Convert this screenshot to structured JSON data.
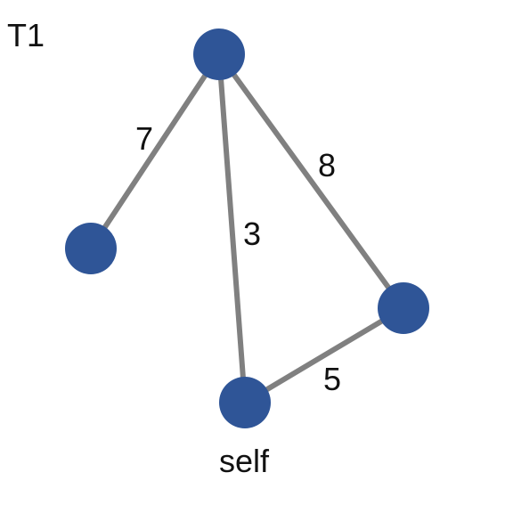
{
  "title": "T1",
  "colors": {
    "node": "#2f5597",
    "edge": "#808080",
    "text": "#111111"
  },
  "nodes": [
    {
      "id": "top",
      "label": ""
    },
    {
      "id": "left",
      "label": ""
    },
    {
      "id": "right",
      "label": ""
    },
    {
      "id": "self",
      "label": "self"
    }
  ],
  "edges": [
    {
      "id": "top-left",
      "source": "top",
      "target": "left",
      "weight": "7"
    },
    {
      "id": "top-self",
      "source": "top",
      "target": "self",
      "weight": "3"
    },
    {
      "id": "top-right",
      "source": "top",
      "target": "right",
      "weight": "8"
    },
    {
      "id": "self-right",
      "source": "self",
      "target": "right",
      "weight": "5"
    }
  ]
}
